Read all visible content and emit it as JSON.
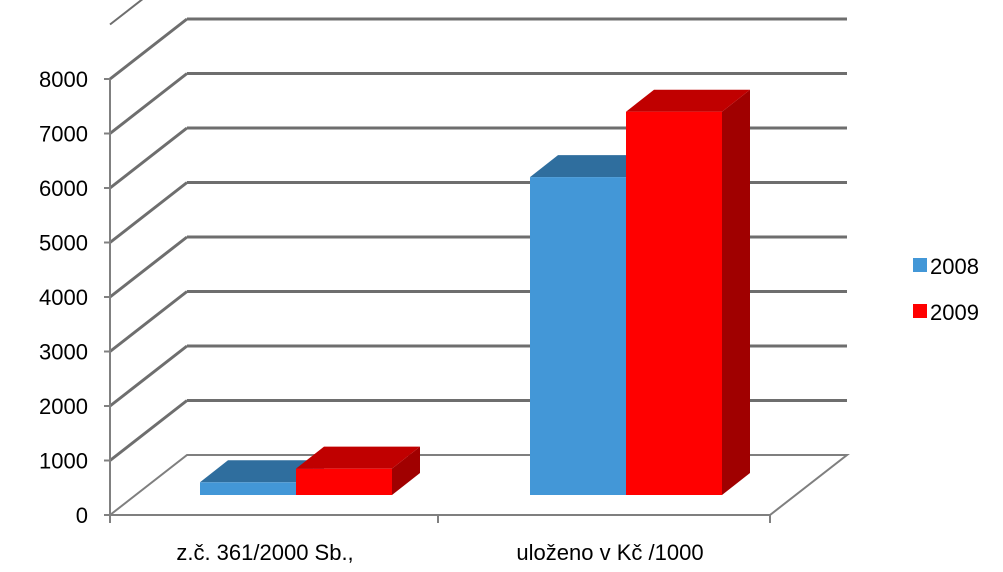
{
  "chart_data": {
    "type": "bar",
    "categories": [
      "z.č. 361/2000 Sb.,",
      "uloženo v Kč /1000"
    ],
    "series": [
      {
        "name": "2008",
        "values": [
          600,
          6200
        ],
        "color": "#4397d7",
        "top": "#2f6e9e",
        "side": "#3079b2"
      },
      {
        "name": "2009",
        "values": [
          850,
          7400
        ],
        "color": "#ff0000",
        "top": "#c00000",
        "side": "#a00000"
      }
    ],
    "ylim": [
      0,
      8000
    ],
    "yticks": [
      "0",
      "1000",
      "2000",
      "3000",
      "4000",
      "5000",
      "6000",
      "7000",
      "8000"
    ],
    "grid": true,
    "legend": "right"
  }
}
